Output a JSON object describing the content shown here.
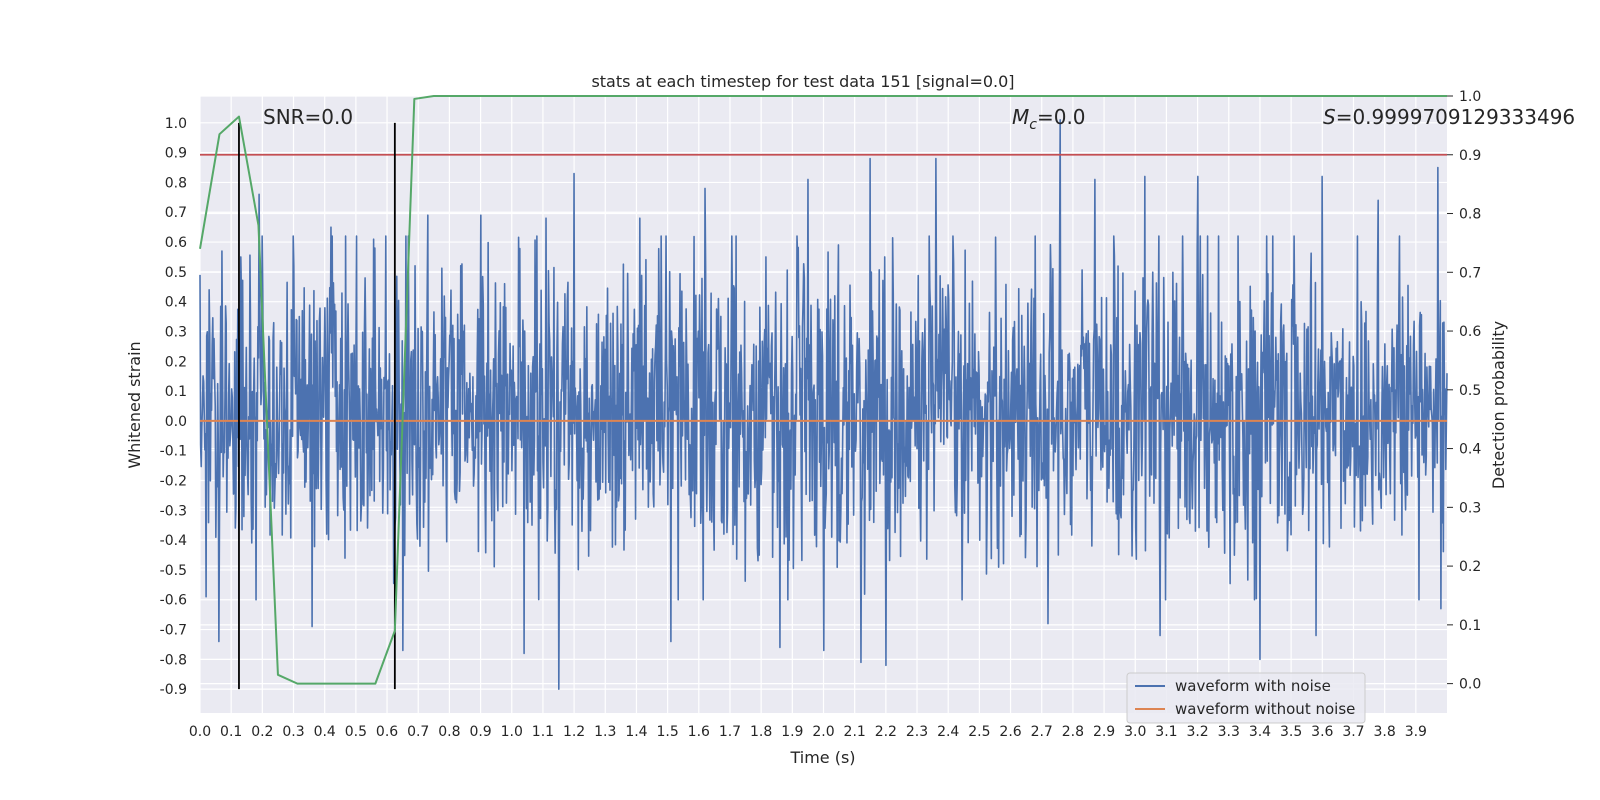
{
  "chart_data": {
    "type": "line",
    "title": "stats at each timestep for test data 151 [signal=0.0]",
    "xlabel": "Time (s)",
    "ylabel_left": "Whitened strain",
    "ylabel_right": "Detection probability",
    "xlim": [
      0.0,
      4.0
    ],
    "ylim_left": [
      -0.98,
      1.09
    ],
    "ylim_right": [
      -0.05,
      1.0
    ],
    "x_ticks": [
      "0.0",
      "0.1",
      "0.2",
      "0.3",
      "0.4",
      "0.5",
      "0.6",
      "0.7",
      "0.8",
      "0.9",
      "1.0",
      "1.1",
      "1.2",
      "1.3",
      "1.4",
      "1.5",
      "1.6",
      "1.7",
      "1.8",
      "1.9",
      "2.0",
      "2.1",
      "2.2",
      "2.3",
      "2.4",
      "2.5",
      "2.6",
      "2.7",
      "2.8",
      "2.9",
      "3.0",
      "3.1",
      "3.2",
      "3.3",
      "3.4",
      "3.5",
      "3.6",
      "3.7",
      "3.8",
      "3.9"
    ],
    "y_ticks_left": [
      "1.0",
      "0.9",
      "0.8",
      "0.7",
      "0.6",
      "0.5",
      "0.4",
      "0.3",
      "0.2",
      "0.1",
      "0.0",
      "-0.1",
      "-0.2",
      "-0.3",
      "-0.4",
      "-0.5",
      "-0.6",
      "-0.7",
      "-0.8",
      "-0.9"
    ],
    "y_ticks_right": [
      "1.0",
      "0.9",
      "0.8",
      "0.7",
      "0.6",
      "0.5",
      "0.4",
      "0.3",
      "0.2",
      "0.1",
      "0.0"
    ],
    "annotations": {
      "snr": "SNR=0.0",
      "mc_symbol": "M",
      "mc_sub": "c",
      "mc_value": "=0.0",
      "s_symbol": "S",
      "s_value": "=0.9999709129333496"
    },
    "grid": true,
    "legend_position": "lower-right",
    "series": [
      {
        "name": "waveform with noise",
        "axis": "left",
        "color": "#4c72b0",
        "description_type": "noise",
        "peak_max": [
          [
            0.0,
            0.49
          ],
          [
            0.03,
            0.44
          ],
          [
            0.07,
            0.57
          ],
          [
            0.13,
            0.55
          ],
          [
            0.19,
            0.76
          ],
          [
            0.2,
            0.62
          ],
          [
            0.3,
            0.52
          ],
          [
            0.42,
            0.65
          ],
          [
            0.56,
            0.58
          ],
          [
            0.66,
            0.62
          ],
          [
            0.73,
            0.69
          ],
          [
            0.9,
            0.69
          ],
          [
            1.11,
            0.68
          ],
          [
            1.2,
            0.83
          ],
          [
            1.41,
            0.68
          ],
          [
            1.62,
            0.78
          ],
          [
            1.95,
            0.81
          ],
          [
            2.15,
            0.88
          ],
          [
            2.36,
            0.88
          ],
          [
            2.76,
            1.01
          ],
          [
            2.87,
            0.81
          ],
          [
            3.03,
            0.82
          ],
          [
            3.2,
            0.82
          ],
          [
            3.6,
            0.82
          ],
          [
            3.78,
            0.74
          ],
          [
            3.91,
            0.76
          ],
          [
            3.97,
            0.85
          ]
        ],
        "peak_min": [
          [
            0.02,
            -0.59
          ],
          [
            0.06,
            -0.74
          ],
          [
            0.18,
            -0.6
          ],
          [
            0.36,
            -0.69
          ],
          [
            0.65,
            -0.77
          ],
          [
            1.04,
            -0.78
          ],
          [
            1.15,
            -0.9
          ],
          [
            1.51,
            -0.74
          ],
          [
            1.86,
            -0.76
          ],
          [
            2.0,
            -0.77
          ],
          [
            2.12,
            -0.81
          ],
          [
            2.2,
            -0.82
          ],
          [
            2.72,
            -0.68
          ],
          [
            3.08,
            -0.72
          ],
          [
            3.4,
            -0.8
          ],
          [
            3.58,
            -0.72
          ],
          [
            3.91,
            -0.6
          ],
          [
            3.98,
            -0.63
          ]
        ]
      },
      {
        "name": "waveform without noise",
        "axis": "left",
        "color": "#dd8452",
        "x": [
          0.0,
          4.0
        ],
        "y": [
          0.0,
          0.0
        ]
      },
      {
        "name": "",
        "axis": "right",
        "color": "#55a868",
        "x": [
          0.0,
          0.0625,
          0.125,
          0.1875,
          0.25,
          0.3125,
          0.375,
          0.4375,
          0.5,
          0.5625,
          0.625,
          0.6875,
          0.75,
          0.8125,
          0.875,
          1.0,
          2.0,
          3.0,
          4.0
        ],
        "y": [
          0.74,
          0.935,
          0.965,
          0.78,
          0.015,
          0.0,
          0.0,
          0.0,
          0.0,
          0.0,
          0.09,
          0.995,
          1.0,
          1.0,
          1.0,
          1.0,
          1.0,
          1.0,
          1.0
        ]
      }
    ],
    "threshold_line": {
      "axis": "right",
      "value": 0.9,
      "color": "#c44e52"
    },
    "vertical_markers": {
      "x": [
        0.125,
        0.625
      ],
      "color": "#000000",
      "ymin": -0.9,
      "ymax": 1.0
    }
  }
}
